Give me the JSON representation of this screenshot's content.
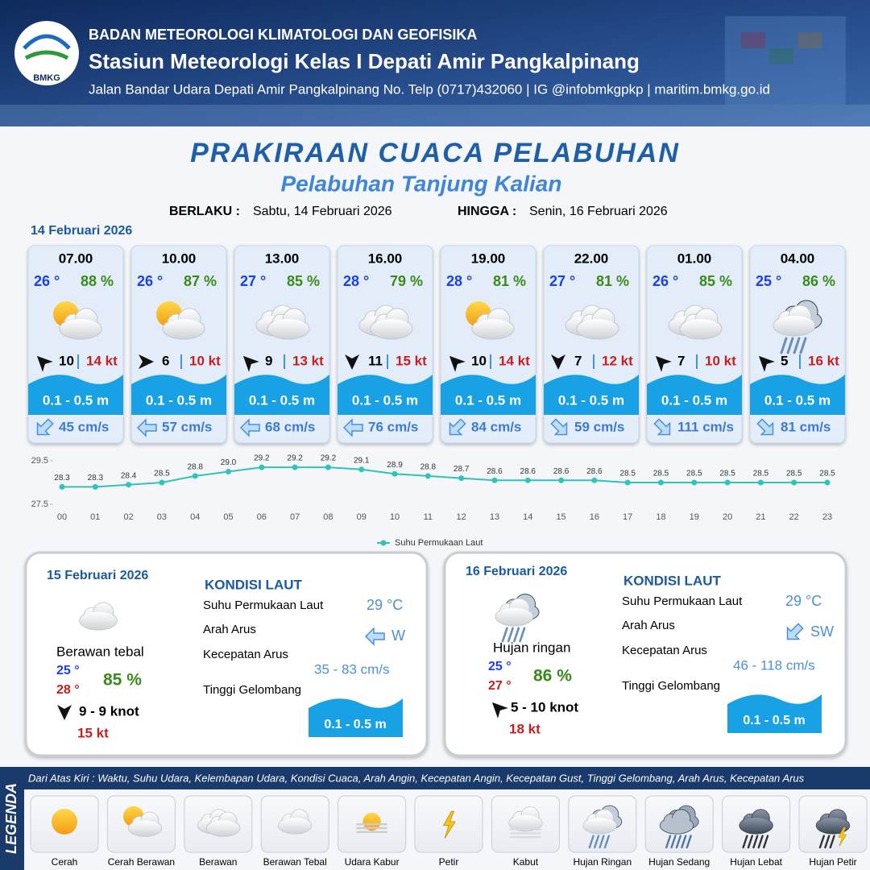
{
  "header": {
    "logo": "BMKG",
    "agency": "BADAN METEOROLOGI KLIMATOLOGI DAN GEOFISIKA",
    "station": "Stasiun Meteorologi Kelas I Depati Amir Pangkalpinang",
    "address": "Jalan Bandar Udara Depati Amir Pangkalpinang No. Telp (0717)432060 | IG @infobmkgpkp | maritim.bmkg.go.id"
  },
  "title": "PRAKIRAAN CUACA PELABUHAN",
  "subtitle": "Pelabuhan Tanjung Kalian",
  "validity": {
    "from_label": "BERLAKU :",
    "from": "Sabtu, 14 Februari 2026",
    "until_label": "HINGGA :",
    "until": "Senin, 16 Februari 2026"
  },
  "day1": {
    "date": "14 Februari 2026",
    "forecasts": [
      {
        "time": "07.00",
        "temp": "26 °",
        "humidity": "88 %",
        "wind": "10",
        "gust": "14 kt",
        "wave": "0.1 - 0.5 m",
        "current": "45 cm/s"
      },
      {
        "time": "10.00",
        "temp": "26 °",
        "humidity": "87 %",
        "wind": "6",
        "gust": "10 kt",
        "wave": "0.1 - 0.5 m",
        "current": "57 cm/s"
      },
      {
        "time": "13.00",
        "temp": "27 °",
        "humidity": "85 %",
        "wind": "9",
        "gust": "13 kt",
        "wave": "0.1 - 0.5 m",
        "current": "68 cm/s"
      },
      {
        "time": "16.00",
        "temp": "28 °",
        "humidity": "79 %",
        "wind": "11",
        "gust": "15 kt",
        "wave": "0.1 - 0.5 m",
        "current": "76 cm/s"
      },
      {
        "time": "19.00",
        "temp": "28 °",
        "humidity": "81 %",
        "wind": "10",
        "gust": "14 kt",
        "wave": "0.1 - 0.5 m",
        "current": "84 cm/s"
      },
      {
        "time": "22.00",
        "temp": "27 °",
        "humidity": "81 %",
        "wind": "7",
        "gust": "12 kt",
        "wave": "0.1 - 0.5 m",
        "current": "59 cm/s"
      },
      {
        "time": "01.00",
        "temp": "26 °",
        "humidity": "85 %",
        "wind": "7",
        "gust": "10 kt",
        "wave": "0.1 - 0.5 m",
        "current": "111 cm/s"
      },
      {
        "time": "04.00",
        "temp": "25 °",
        "humidity": "86 %",
        "wind": "5",
        "gust": "16 kt",
        "wave": "0.1 - 0.5 m",
        "current": "81 cm/s"
      }
    ]
  },
  "chart_data": {
    "type": "line",
    "categories": [
      "00",
      "01",
      "02",
      "03",
      "04",
      "05",
      "06",
      "07",
      "08",
      "09",
      "10",
      "11",
      "12",
      "13",
      "14",
      "15",
      "16",
      "17",
      "18",
      "19",
      "20",
      "21",
      "22",
      "23"
    ],
    "series": [
      {
        "name": "Suhu Permukaan Laut",
        "color": "#2ec4b6",
        "values": [
          28.3,
          28.3,
          28.4,
          28.5,
          28.8,
          29.0,
          29.2,
          29.2,
          29.2,
          29.1,
          28.9,
          28.8,
          28.7,
          28.6,
          28.6,
          28.6,
          28.6,
          28.5,
          28.5,
          28.5,
          28.5,
          28.5,
          28.5,
          28.5
        ],
        "value_labels": [
          "28.3",
          "28.3",
          "28.4",
          "28.5",
          "28.8",
          "29.0",
          "29.2",
          "29.2",
          "29.2",
          "29.1",
          "28.9",
          "28.8",
          "28.7",
          "28.6",
          "28.6",
          "28.6",
          "28.6",
          "28.5",
          "28.5",
          "28.5",
          "28.5",
          "28.5",
          "28.5",
          "28.5"
        ]
      }
    ],
    "ylim": [
      27.5,
      29.5
    ],
    "yticks": [
      27.5,
      29.5
    ],
    "grid": false,
    "legend": "bottom"
  },
  "day2": {
    "date": "15 Februari 2026",
    "condition": "Berawan tebal",
    "temp_min": "25 °",
    "temp_max": "28 °",
    "humidity": "85 %",
    "wind": "9  - 9 knot",
    "gust": "15 kt",
    "sea": {
      "heading": "KONDISI LAUT",
      "sst_label": "Suhu Permukaan Laut",
      "sst": "29 °C",
      "dir_label": "Arah Arus",
      "dir": "W",
      "speed_label": "Kecepatan Arus",
      "speed": "35  - 83 cm/s",
      "wave_label": "Tinggi Gelombang",
      "wave": "0.1 - 0.5 m"
    }
  },
  "day3": {
    "date": "16 Februari 2026",
    "condition": "Hujan ringan",
    "temp_min": "25 °",
    "temp_max": "27 °",
    "humidity": "86 %",
    "wind": "5 - 10 knot",
    "gust": "18 kt",
    "sea": {
      "heading": "KONDISI LAUT",
      "sst_label": "Suhu Permukaan Laut",
      "sst": "29 °C",
      "dir_label": "Arah Arus",
      "dir": "SW",
      "speed_label": "Kecepatan Arus",
      "speed": "46  - 118 cm/s",
      "wave_label": "Tinggi Gelombang",
      "wave": "0.1 - 0.5 m"
    }
  },
  "legend": {
    "title": "LEGENDA",
    "description": "Dari Atas Kiri : Waktu, Suhu Udara, Kelembapan Udara, Kondisi Cuaca, Arah Angin, Kecepatan Angin, Kecepatan Gust, Tinggi Gelombang, Arah Arus, Kecepatan Arus",
    "items": [
      "Cerah",
      "Cerah Berawan",
      "Berawan",
      "Berawan Tebal",
      "Udara Kabur",
      "Petir",
      "Kabut",
      "Hujan Ringan",
      "Hujan Sedang",
      "Hujan Lebat",
      "Hujan Petir"
    ]
  }
}
